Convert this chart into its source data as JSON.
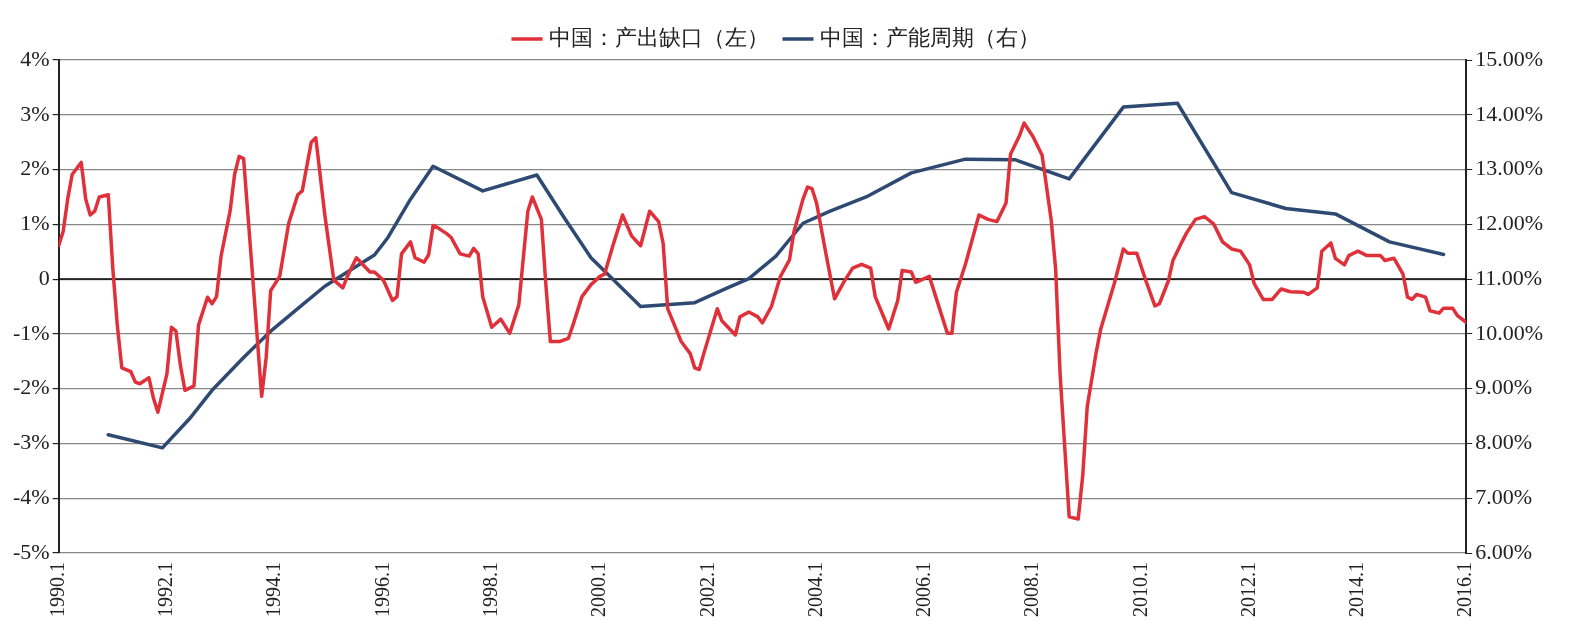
{
  "chart_data": {
    "type": "line",
    "legend": "top",
    "grid": "y",
    "line_style": "solid",
    "marker": "none",
    "xlim": [
      "1990-01",
      "2016-01"
    ],
    "xticks": [
      {
        "value": "1990-01",
        "label": "1990.1"
      },
      {
        "value": "1992-01",
        "label": "1992.1"
      },
      {
        "value": "1994-01",
        "label": "1994.1"
      },
      {
        "value": "1996-01",
        "label": "1996.1"
      },
      {
        "value": "1998-01",
        "label": "1998.1"
      },
      {
        "value": "2000-01",
        "label": "2000.1"
      },
      {
        "value": "2002-01",
        "label": "2002.1"
      },
      {
        "value": "2004-01",
        "label": "2004.1"
      },
      {
        "value": "2006-01",
        "label": "2006.1"
      },
      {
        "value": "2008-01",
        "label": "2008.1"
      },
      {
        "value": "2010-01",
        "label": "2010.1"
      },
      {
        "value": "2012-01",
        "label": "2012.1"
      },
      {
        "value": "2014-01",
        "label": "2014.1"
      },
      {
        "value": "2016-01",
        "label": "2016.1"
      }
    ],
    "ylim": [
      -5,
      4
    ],
    "yticks": [
      {
        "value": -5,
        "label": "-5%"
      },
      {
        "value": -4,
        "label": "-4%"
      },
      {
        "value": -3,
        "label": "-3%"
      },
      {
        "value": -2,
        "label": "-2%"
      },
      {
        "value": -1,
        "label": "-1%"
      },
      {
        "value": 0,
        "label": "0"
      },
      {
        "value": 1,
        "label": "1%"
      },
      {
        "value": 2,
        "label": "2%"
      },
      {
        "value": 3,
        "label": "3%"
      },
      {
        "value": 4,
        "label": "4%"
      }
    ],
    "y2lim": [
      6,
      15
    ],
    "y2ticks": [
      {
        "value": 6,
        "label": "6.00%"
      },
      {
        "value": 7,
        "label": "7.00%"
      },
      {
        "value": 8,
        "label": "8.00%"
      },
      {
        "value": 9,
        "label": "9.00%"
      },
      {
        "value": 10,
        "label": "10.00%"
      },
      {
        "value": 11,
        "label": "11.00%"
      },
      {
        "value": 12,
        "label": "12.00%"
      },
      {
        "value": 13,
        "label": "13.00%"
      },
      {
        "value": 14,
        "label": "14.00%"
      },
      {
        "value": 15,
        "label": "15.00%"
      }
    ],
    "ref_lines": [
      {
        "axis": "y",
        "value": 0,
        "color": "#000000"
      }
    ],
    "series": [
      {
        "name": "中国：产出缺口（左）",
        "color": "#e0313a",
        "axis": "y",
        "x": [
          "1990-01",
          "1990-02",
          "1990-03",
          "1990-04",
          "1990-06",
          "1990-07",
          "1990-08",
          "1990-09",
          "1990-10",
          "1990-12",
          "1991-01",
          "1991-02",
          "1991-03",
          "1991-05",
          "1991-06",
          "1991-07",
          "1991-09",
          "1991-10",
          "1991-11",
          "1992-01",
          "1992-02",
          "1992-03",
          "1992-04",
          "1992-05",
          "1992-07",
          "1992-08",
          "1992-10",
          "1992-11",
          "1992-12",
          "1993-01",
          "1993-03",
          "1993-04",
          "1993-05",
          "1993-06",
          "1993-08",
          "1993-10",
          "1993-11",
          "1993-12",
          "1994-02",
          "1994-04",
          "1994-06",
          "1994-07",
          "1994-09",
          "1994-10",
          "1994-12",
          "1995-02",
          "1995-04",
          "1995-05",
          "1995-07",
          "1995-10",
          "1995-11",
          "1996-01",
          "1996-03",
          "1996-04",
          "1996-05",
          "1996-07",
          "1996-08",
          "1996-10",
          "1996-11",
          "1996-12",
          "1997-01",
          "1997-03",
          "1997-04",
          "1997-06",
          "1997-08",
          "1997-09",
          "1997-10",
          "1997-11",
          "1998-01",
          "1998-03",
          "1998-05",
          "1998-07",
          "1998-09",
          "1998-10",
          "1998-12",
          "1999-01",
          "1999-02",
          "1999-04",
          "1999-06",
          "1999-07",
          "1999-09",
          "1999-11",
          "2000-01",
          "2000-02",
          "2000-04",
          "2000-06",
          "2000-08",
          "2000-10",
          "2000-12",
          "2001-02",
          "2001-03",
          "2001-04",
          "2001-07",
          "2001-09",
          "2001-10",
          "2001-11",
          "2001-12",
          "2002-03",
          "2002-04",
          "2002-07",
          "2002-08",
          "2002-10",
          "2002-12",
          "2003-01",
          "2003-03",
          "2003-05",
          "2003-07",
          "2003-08",
          "2003-10",
          "2003-11",
          "2003-12",
          "2004-01",
          "2004-03",
          "2004-05",
          "2004-07",
          "2004-09",
          "2004-11",
          "2005-01",
          "2005-02",
          "2005-05",
          "2005-07",
          "2005-08",
          "2005-10",
          "2005-11",
          "2006-02",
          "2006-04",
          "2006-06",
          "2006-07",
          "2006-08",
          "2006-10",
          "2006-12",
          "2007-01",
          "2007-03",
          "2007-05",
          "2007-07",
          "2007-08",
          "2007-10",
          "2007-11",
          "2008-01",
          "2008-03",
          "2008-05",
          "2008-06",
          "2008-07",
          "2008-09",
          "2008-11",
          "2008-12",
          "2009-01",
          "2009-03",
          "2009-04",
          "2009-07",
          "2009-09",
          "2009-10",
          "2009-12",
          "2010-02",
          "2010-04",
          "2010-05",
          "2010-07",
          "2010-08",
          "2010-10",
          "2010-11",
          "2011-01",
          "2011-03",
          "2011-05",
          "2011-07",
          "2011-09",
          "2011-11",
          "2012-01",
          "2012-02",
          "2012-04",
          "2012-06",
          "2012-08",
          "2012-10",
          "2013-01",
          "2013-02",
          "2013-04",
          "2013-05",
          "2013-07",
          "2013-08",
          "2013-10",
          "2013-11",
          "2014-01",
          "2014-03",
          "2014-06",
          "2014-07",
          "2014-09",
          "2014-11",
          "2014-12",
          "2015-01",
          "2015-02",
          "2015-04",
          "2015-05",
          "2015-07",
          "2015-08",
          "2015-10",
          "2015-11",
          "2016-01"
        ],
        "values": [
          0.61,
          0.87,
          1.46,
          1.91,
          2.13,
          1.46,
          1.17,
          1.24,
          1.5,
          1.54,
          0.2,
          -0.84,
          -1.62,
          -1.69,
          -1.88,
          -1.91,
          -1.8,
          -2.17,
          -2.43,
          -1.73,
          -0.88,
          -0.95,
          -1.58,
          -2.03,
          -1.95,
          -0.84,
          -0.33,
          -0.45,
          -0.32,
          0.42,
          1.24,
          1.91,
          2.24,
          2.2,
          0.05,
          -2.14,
          -1.43,
          -0.21,
          0.05,
          1.02,
          1.54,
          1.61,
          2.5,
          2.58,
          1.17,
          -0.02,
          -0.16,
          0.05,
          0.39,
          0.13,
          0.13,
          -0.02,
          -0.39,
          -0.32,
          0.46,
          0.68,
          0.39,
          0.31,
          0.44,
          0.98,
          0.94,
          0.83,
          0.76,
          0.46,
          0.42,
          0.56,
          0.46,
          -0.32,
          -0.88,
          -0.73,
          -0.99,
          -0.47,
          1.24,
          1.5,
          1.09,
          -0.1,
          -1.14,
          -1.14,
          -1.08,
          -0.84,
          -0.32,
          -0.1,
          0.05,
          0.09,
          0.65,
          1.17,
          0.79,
          0.61,
          1.24,
          1.05,
          0.65,
          -0.54,
          -1.14,
          -1.36,
          -1.62,
          -1.65,
          -1.36,
          -0.54,
          -0.76,
          -1.02,
          -0.69,
          -0.6,
          -0.69,
          -0.8,
          -0.5,
          0.05,
          0.35,
          0.87,
          1.46,
          1.68,
          1.65,
          1.39,
          0.5,
          -0.36,
          -0.06,
          0.2,
          0.27,
          0.2,
          -0.32,
          -0.91,
          -0.39,
          0.16,
          0.13,
          -0.06,
          0.05,
          -0.47,
          -0.99,
          -0.99,
          -0.24,
          0.27,
          0.87,
          1.17,
          1.09,
          1.05,
          1.39,
          2.28,
          2.62,
          2.85,
          2.6,
          2.26,
          1.09,
          0.18,
          -1.75,
          -4.34,
          -4.38,
          -3.59,
          -2.33,
          -1.33,
          -0.91,
          -0.08,
          0.55,
          0.47,
          0.47,
          -0.03,
          -0.49,
          -0.45,
          -0.03,
          0.34,
          0.68,
          0.84,
          1.09,
          1.14,
          1.01,
          0.68,
          0.55,
          0.51,
          0.26,
          -0.08,
          -0.37,
          -0.37,
          -0.18,
          -0.23,
          -0.24,
          -0.28,
          -0.16,
          0.51,
          0.66,
          0.38,
          0.26,
          0.43,
          0.51,
          0.43,
          0.43,
          0.34,
          0.38,
          0.09,
          -0.33,
          -0.37,
          -0.28,
          -0.33,
          -0.58,
          -0.62,
          -0.53,
          -0.53,
          -0.66,
          -0.79
        ]
      },
      {
        "name": "中国：产能周期（右）",
        "color": "#2e4a72",
        "axis": "y2",
        "x": [
          "1990-12",
          "1991-12",
          "1992-06",
          "1992-11",
          "1993-06",
          "1993-12",
          "1994-07",
          "1994-12",
          "1995-05",
          "1995-11",
          "1996-02",
          "1996-07",
          "1996-12",
          "1997-11",
          "1998-11",
          "1999-05",
          "1999-11",
          "2000-10",
          "2001-10",
          "2002-05",
          "2002-10",
          "2003-04",
          "2003-10",
          "2004-04",
          "2004-12",
          "2005-10",
          "2006-10",
          "2007-09",
          "2008-09",
          "2009-09",
          "2010-09",
          "2011-09",
          "2012-09",
          "2013-08",
          "2014-08",
          "2015-08"
        ],
        "values": [
          8.16,
          7.92,
          8.45,
          8.97,
          9.57,
          10.05,
          10.53,
          10.87,
          11.13,
          11.44,
          11.76,
          12.46,
          13.06,
          12.61,
          12.9,
          12.13,
          11.39,
          10.5,
          10.57,
          10.83,
          11.01,
          11.42,
          12.02,
          12.24,
          12.5,
          12.94,
          13.19,
          13.18,
          12.83,
          14.14,
          14.21,
          12.58,
          12.29,
          12.19,
          11.68,
          11.45
        ]
      }
    ]
  }
}
